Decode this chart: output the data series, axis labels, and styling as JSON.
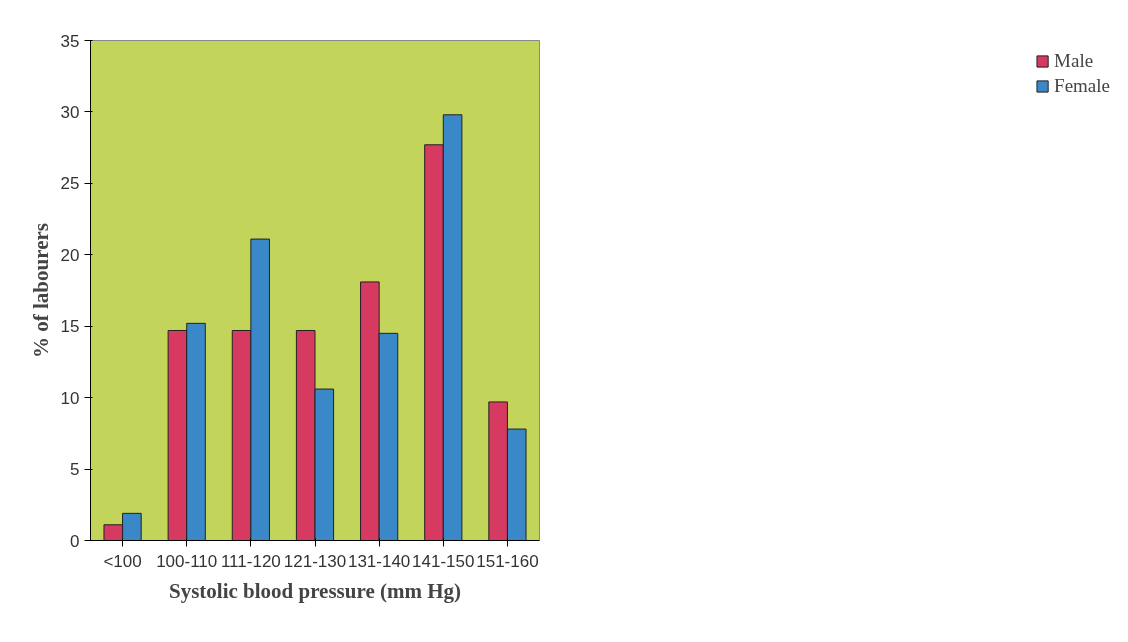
{
  "chart_data": {
    "type": "bar",
    "xlabel": "Systolic blood pressure (mm Hg)",
    "ylabel": "% of labourers",
    "categories": [
      "<100",
      "100-110",
      "111-120",
      "121-130",
      "131-140",
      "141-150",
      "151-160"
    ],
    "series": [
      {
        "name": "Male",
        "color": "#d63a60",
        "values": [
          1.1,
          14.7,
          14.7,
          14.7,
          18.1,
          27.7,
          9.7
        ]
      },
      {
        "name": "Female",
        "color": "#3a88c8",
        "values": [
          1.9,
          15.2,
          21.1,
          10.6,
          14.5,
          29.8,
          7.8
        ]
      }
    ],
    "ylim": [
      0,
      35
    ],
    "yticks": [
      0,
      5,
      10,
      15,
      20,
      25,
      30,
      35
    ],
    "grid": false,
    "legend": "right"
  }
}
